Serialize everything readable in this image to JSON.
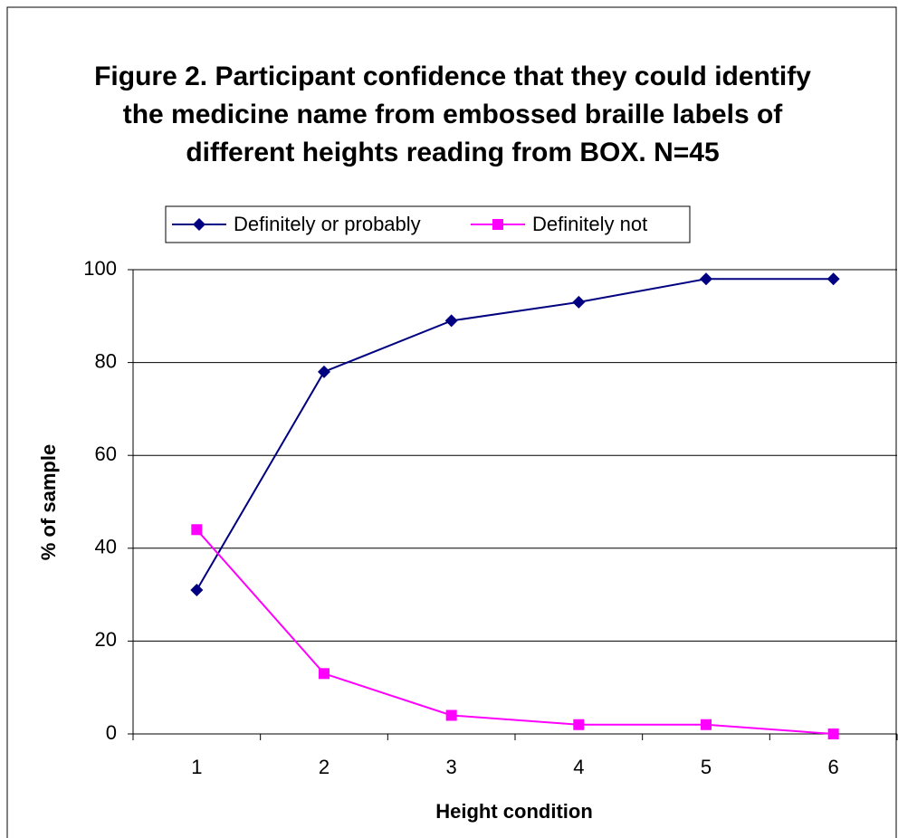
{
  "chart_data": {
    "type": "line",
    "title": "Figure 2. Participant confidence that they could identify the medicine name from embossed braille labels of different heights reading from BOX.  N=45",
    "x_label": "Height condition",
    "y_label": "% of sample",
    "categories": [
      "1",
      "2",
      "3",
      "4",
      "5",
      "6"
    ],
    "series": [
      {
        "name": "Definitely or probably",
        "color": "#000080",
        "marker": "diamond",
        "values": [
          31,
          78,
          89,
          93,
          98,
          98
        ]
      },
      {
        "name": "Definitely not",
        "color": "#ff00ff",
        "marker": "square",
        "values": [
          44,
          13,
          4,
          2,
          2,
          0
        ]
      }
    ],
    "ylim": [
      0,
      100
    ],
    "yticks": [
      0,
      20,
      40,
      60,
      80,
      100
    ],
    "grid": true,
    "legend": "top"
  }
}
